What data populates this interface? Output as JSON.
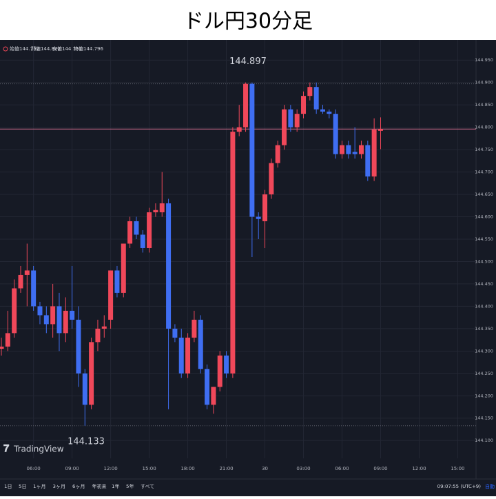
{
  "chart_data": {
    "type": "candlestick",
    "title": "ドル円30分足",
    "ohlc_header": [
      "始値144.792",
      "高値144.822",
      "安値144.751",
      "終値144.796"
    ],
    "logo": "TradingView",
    "categories": [
      null,
      null,
      null,
      null,
      null,
      "06:00",
      null,
      null,
      null,
      null,
      null,
      "09:00",
      null,
      null,
      null,
      null,
      null,
      "12:00",
      null,
      null,
      null,
      null,
      null,
      "15:00",
      null,
      null,
      null,
      null,
      null,
      "18:00",
      null,
      null,
      null,
      null,
      null,
      "21:00",
      null,
      null,
      null,
      null,
      null,
      "30",
      null,
      null,
      null,
      null,
      null,
      "03:00",
      null,
      null,
      null,
      null,
      null,
      "06:00",
      null,
      null,
      null,
      null,
      null,
      "09:00",
      null,
      null,
      null,
      null,
      null,
      "12:00",
      null,
      null,
      null,
      null,
      null,
      "15:00",
      null,
      null
    ],
    "open": [
      144.305,
      144.31,
      144.34,
      144.44,
      144.47,
      144.48,
      144.4,
      144.38,
      144.36,
      144.4,
      144.34,
      144.39,
      144.37,
      144.25,
      144.18,
      144.32,
      144.35,
      144.37,
      144.48,
      144.43,
      144.54,
      144.59,
      144.56,
      144.53,
      144.61,
      144.61,
      144.63,
      144.35,
      144.33,
      144.25,
      144.33,
      144.37,
      144.26,
      144.18,
      144.22,
      144.29,
      144.25,
      144.79,
      144.8,
      144.897,
      144.6,
      144.59,
      144.65,
      144.72,
      144.76,
      144.84,
      144.8,
      144.83,
      144.87,
      144.89,
      144.84,
      144.835,
      144.83,
      144.74,
      144.76,
      144.745,
      144.74,
      144.76,
      144.69,
      144.792,
      null,
      null,
      null,
      null,
      null,
      null,
      null,
      null,
      null,
      null,
      null,
      null,
      null,
      null
    ],
    "high": [
      144.33,
      144.39,
      144.46,
      144.49,
      144.54,
      144.49,
      144.41,
      144.4,
      144.45,
      144.43,
      144.42,
      144.49,
      144.4,
      144.26,
      144.33,
      144.37,
      144.38,
      144.48,
      144.49,
      144.54,
      144.6,
      144.6,
      144.57,
      144.62,
      144.63,
      144.7,
      144.64,
      144.36,
      144.35,
      144.34,
      144.39,
      144.38,
      144.27,
      144.22,
      144.3,
      144.3,
      144.8,
      144.85,
      144.9,
      144.9,
      144.61,
      144.66,
      144.73,
      144.77,
      144.85,
      144.85,
      144.84,
      144.88,
      144.9,
      144.9,
      144.85,
      144.84,
      144.84,
      144.77,
      144.77,
      144.8,
      144.77,
      144.77,
      144.82,
      144.822,
      null,
      null,
      null,
      null,
      null,
      null,
      null,
      null,
      null,
      null,
      null,
      null,
      null,
      null
    ],
    "low": [
      144.29,
      144.3,
      144.33,
      144.43,
      144.4,
      144.39,
      144.36,
      144.34,
      144.33,
      144.3,
      144.32,
      144.35,
      144.22,
      144.133,
      144.17,
      144.3,
      144.33,
      144.35,
      144.42,
      144.42,
      144.53,
      144.55,
      144.52,
      144.52,
      144.6,
      144.6,
      144.17,
      144.32,
      144.24,
      144.24,
      144.32,
      144.25,
      144.17,
      144.16,
      144.21,
      144.24,
      144.24,
      144.78,
      144.79,
      144.51,
      144.55,
      144.53,
      144.64,
      144.71,
      144.75,
      144.79,
      144.79,
      144.82,
      144.86,
      144.83,
      144.83,
      144.82,
      144.73,
      144.73,
      144.73,
      144.73,
      144.73,
      144.68,
      144.68,
      144.751,
      null,
      null,
      null,
      null,
      null,
      null,
      null,
      null,
      null,
      null,
      null,
      null,
      null,
      null
    ],
    "close": [
      144.31,
      144.34,
      144.44,
      144.47,
      144.48,
      144.4,
      144.38,
      144.36,
      144.4,
      144.34,
      144.39,
      144.37,
      144.25,
      144.18,
      144.32,
      144.35,
      144.355,
      144.48,
      144.43,
      144.54,
      144.59,
      144.56,
      144.53,
      144.61,
      144.615,
      144.63,
      144.35,
      144.33,
      144.25,
      144.33,
      144.37,
      144.26,
      144.18,
      144.22,
      144.29,
      144.25,
      144.79,
      144.8,
      144.897,
      144.6,
      144.595,
      144.65,
      144.72,
      144.76,
      144.84,
      144.8,
      144.83,
      144.87,
      144.89,
      144.84,
      144.835,
      144.83,
      144.74,
      144.76,
      144.74,
      144.74,
      144.76,
      144.69,
      144.795,
      144.796,
      null,
      null,
      null,
      null,
      null,
      null,
      null,
      null,
      null,
      null,
      null,
      null,
      null,
      null
    ],
    "up_color": "#f0485a",
    "down_color": "#3f6ef2",
    "high_marker": 144.897,
    "low_marker": 144.133,
    "last_price": 144.796,
    "ylim": [
      144.068,
      144.995
    ],
    "yticks": [
      {
        "value": 144.1,
        "label": "144.100"
      },
      {
        "value": 144.15,
        "label": "144.150"
      },
      {
        "value": 144.2,
        "label": "144.200"
      },
      {
        "value": 144.25,
        "label": "144.250"
      },
      {
        "value": 144.3,
        "label": "144.300"
      },
      {
        "value": 144.35,
        "label": "144.350"
      },
      {
        "value": 144.4,
        "label": "144.400"
      },
      {
        "value": 144.45,
        "label": "144.450"
      },
      {
        "value": 144.5,
        "label": "144.500"
      },
      {
        "value": 144.55,
        "label": "144.550"
      },
      {
        "value": 144.6,
        "label": "144.600"
      },
      {
        "value": 144.65,
        "label": "144.650"
      },
      {
        "value": 144.7,
        "label": "144.700"
      },
      {
        "value": 144.75,
        "label": "144.750"
      },
      {
        "value": 144.8,
        "label": "144.800"
      },
      {
        "value": 144.85,
        "label": "144.850"
      },
      {
        "value": 144.9,
        "label": "144.900"
      },
      {
        "value": 144.95,
        "label": "144.950"
      }
    ],
    "grid": true,
    "range_buttons": [
      "1日",
      "5日",
      "1ヶ月",
      "3ヶ月",
      "6ヶ月",
      "年初来",
      "1年",
      "5年",
      "すべて"
    ],
    "clock": "09:07:55 (UTC+9)",
    "scale_mode": "自動"
  }
}
